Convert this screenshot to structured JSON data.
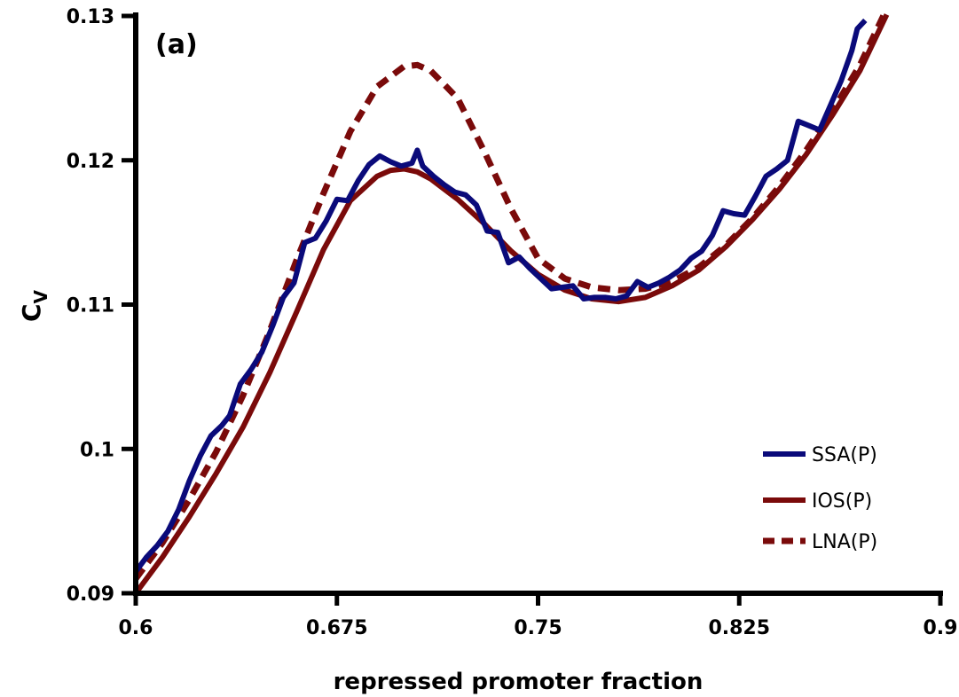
{
  "chart_data": {
    "type": "line",
    "panel_label": "(a)",
    "xlabel": "repressed promoter fraction",
    "ylabel": "C",
    "ylabel_subscript": "V",
    "xlim": [
      0.6,
      0.9
    ],
    "ylim": [
      0.09,
      0.13
    ],
    "x_ticks": [
      0.6,
      0.675,
      0.75,
      0.825,
      0.9
    ],
    "x_tick_labels": [
      "0.6",
      "0.675",
      "0.75",
      "0.825",
      "0.9"
    ],
    "y_ticks": [
      0.09,
      0.1,
      0.11,
      0.12,
      0.13
    ],
    "y_tick_labels": [
      "0.09",
      "0.1",
      "0.11",
      "0.12",
      "0.13"
    ],
    "grid": false,
    "legend_position": "bottom-right",
    "series": [
      {
        "name": "SSA(P)",
        "color": "#0a0a7a",
        "style": "solid",
        "x": [
          0.6,
          0.604,
          0.608,
          0.612,
          0.616,
          0.62,
          0.624,
          0.628,
          0.632,
          0.635,
          0.639,
          0.643,
          0.647,
          0.651,
          0.655,
          0.659,
          0.663,
          0.667,
          0.671,
          0.675,
          0.679,
          0.683,
          0.687,
          0.691,
          0.695,
          0.699,
          0.703,
          0.705,
          0.707,
          0.711,
          0.715,
          0.719,
          0.723,
          0.727,
          0.731,
          0.735,
          0.739,
          0.743,
          0.747,
          0.751,
          0.755,
          0.759,
          0.763,
          0.767,
          0.771,
          0.775,
          0.779,
          0.783,
          0.787,
          0.791,
          0.795,
          0.799,
          0.803,
          0.807,
          0.811,
          0.815,
          0.819,
          0.823,
          0.827,
          0.831,
          0.835,
          0.839,
          0.843,
          0.847,
          0.851,
          0.855,
          0.859,
          0.863,
          0.867,
          0.869,
          0.872
        ],
        "y": [
          0.0915,
          0.0925,
          0.0933,
          0.0943,
          0.0958,
          0.0978,
          0.0995,
          0.1009,
          0.1016,
          0.1023,
          0.1045,
          0.1055,
          0.1067,
          0.1085,
          0.1105,
          0.1115,
          0.1143,
          0.1146,
          0.1158,
          0.1173,
          0.1172,
          0.1186,
          0.1197,
          0.1203,
          0.1199,
          0.1196,
          0.1198,
          0.1207,
          0.1196,
          0.1189,
          0.1183,
          0.1178,
          0.1176,
          0.1169,
          0.1151,
          0.115,
          0.1129,
          0.1133,
          0.1125,
          0.1118,
          0.1111,
          0.1112,
          0.1113,
          0.1104,
          0.1105,
          0.1105,
          0.1104,
          0.1106,
          0.1116,
          0.1112,
          0.1115,
          0.1119,
          0.1124,
          0.1132,
          0.1137,
          0.1148,
          0.1165,
          0.1163,
          0.1162,
          0.1175,
          0.1189,
          0.1194,
          0.12,
          0.1227,
          0.1224,
          0.1221,
          0.1238,
          0.1255,
          0.1276,
          0.1291,
          0.1297
        ]
      },
      {
        "name": "IOS(P)",
        "color": "#7a0a0a",
        "style": "solid",
        "x": [
          0.6,
          0.61,
          0.62,
          0.63,
          0.64,
          0.65,
          0.66,
          0.67,
          0.68,
          0.69,
          0.695,
          0.7,
          0.705,
          0.71,
          0.72,
          0.73,
          0.74,
          0.75,
          0.76,
          0.77,
          0.78,
          0.79,
          0.8,
          0.81,
          0.82,
          0.83,
          0.84,
          0.85,
          0.86,
          0.87,
          0.88
        ],
        "y": [
          0.09,
          0.0925,
          0.0953,
          0.0983,
          0.1015,
          0.1053,
          0.1095,
          0.1138,
          0.1172,
          0.1189,
          0.1193,
          0.1194,
          0.1192,
          0.1187,
          0.1173,
          0.1156,
          0.1137,
          0.1121,
          0.111,
          0.1104,
          0.1102,
          0.1105,
          0.1113,
          0.1124,
          0.114,
          0.1159,
          0.118,
          0.1204,
          0.1232,
          0.1262,
          0.1301
        ]
      },
      {
        "name": "LNA(P)",
        "color": "#7a0a0a",
        "style": "dashed",
        "x": [
          0.6,
          0.61,
          0.62,
          0.63,
          0.64,
          0.65,
          0.66,
          0.67,
          0.68,
          0.69,
          0.7,
          0.705,
          0.71,
          0.72,
          0.73,
          0.74,
          0.75,
          0.76,
          0.77,
          0.78,
          0.79,
          0.8,
          0.81,
          0.82,
          0.83,
          0.84,
          0.85,
          0.86,
          0.87,
          0.88
        ],
        "y": [
          0.091,
          0.0935,
          0.0965,
          0.0998,
          0.1037,
          0.1082,
          0.1131,
          0.1177,
          0.122,
          0.1251,
          0.1265,
          0.1266,
          0.1262,
          0.1243,
          0.1206,
          0.1166,
          0.1132,
          0.1118,
          0.1112,
          0.111,
          0.1111,
          0.1116,
          0.1126,
          0.1141,
          0.116,
          0.1182,
          0.1207,
          0.1235,
          0.1266,
          0.1305
        ]
      }
    ]
  }
}
